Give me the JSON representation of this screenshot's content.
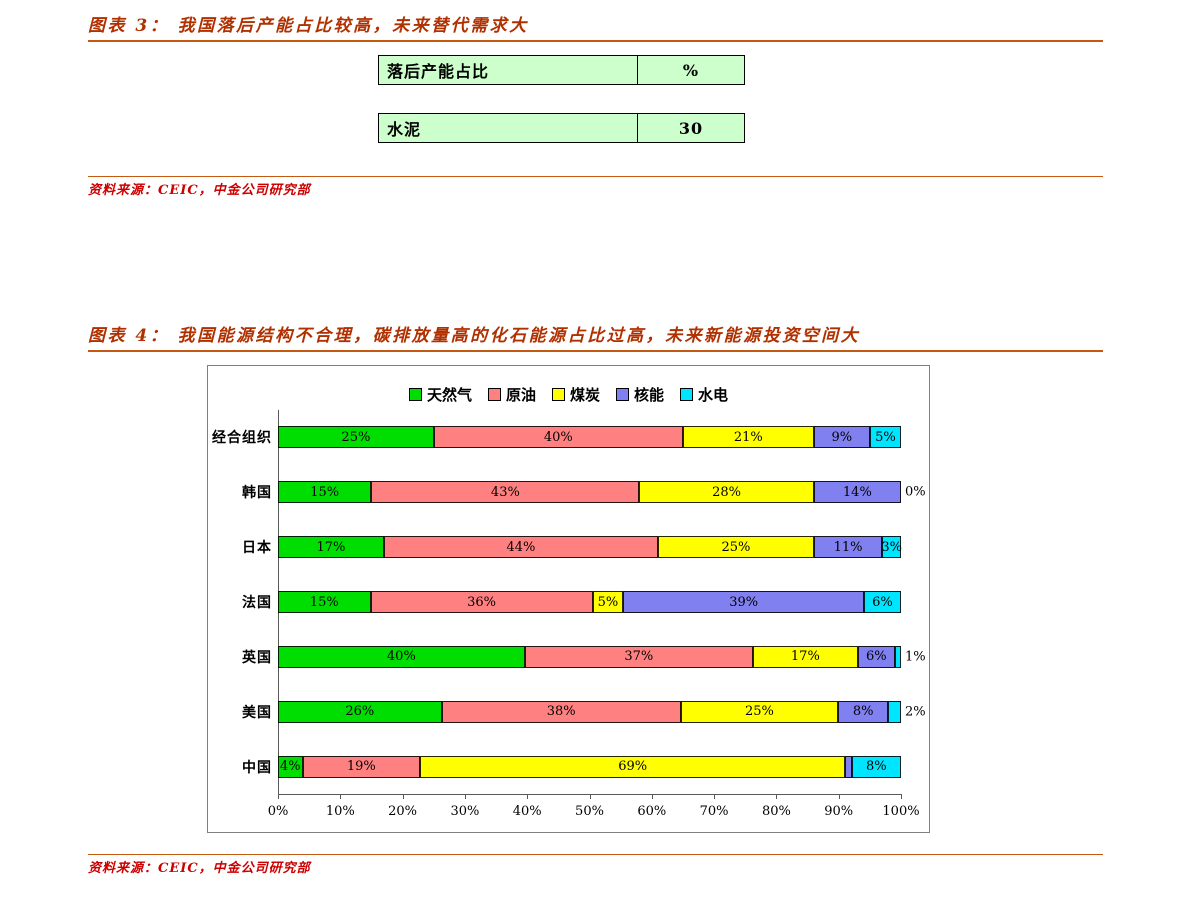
{
  "theme": {
    "title_color": "#b03000",
    "rule_color": "#c45911",
    "source_color": "#cc0000",
    "table_bg": "#ccffcc"
  },
  "figure3": {
    "title": "图表 3：  我国落后产能占比较高，未来替代需求大",
    "source": "资料来源：CEIC，中金公司研究部"
  },
  "figure4": {
    "title": "图表 4：  我国能源结构不合理，碳排放量高的化石能源占比过高，未来新能源投资空间大",
    "source": "资料来源：CEIC，中金公司研究部"
  },
  "chart_data": [
    {
      "type": "table",
      "title": "图表 3：  我国落后产能占比较高，未来替代需求大",
      "columns": [
        "落后产能占比",
        "%"
      ],
      "rows": [
        [
          "水泥",
          "30"
        ]
      ]
    },
    {
      "type": "bar",
      "stacked": true,
      "orientation": "horizontal",
      "title": "图表 4：  我国能源结构不合理，碳排放量高的化石能源占比过高，未来新能源投资空间大",
      "legend_position": "top",
      "grid": false,
      "xlim": [
        0,
        100
      ],
      "xticks": [
        "0%",
        "10%",
        "20%",
        "30%",
        "40%",
        "50%",
        "60%",
        "70%",
        "80%",
        "90%",
        "100%"
      ],
      "categories": [
        "经合组织",
        "韩国",
        "日本",
        "法国",
        "英国",
        "美国",
        "中国"
      ],
      "series": [
        {
          "name": "天然气",
          "color": "#00dd00",
          "values": [
            25,
            15,
            17,
            15,
            40,
            26,
            4
          ]
        },
        {
          "name": "原油",
          "color": "#ff8080",
          "values": [
            40,
            43,
            44,
            36,
            37,
            38,
            19
          ]
        },
        {
          "name": "煤炭",
          "color": "#ffff00",
          "values": [
            21,
            28,
            25,
            5,
            17,
            25,
            69
          ]
        },
        {
          "name": "核能",
          "color": "#8080f0",
          "values": [
            9,
            14,
            11,
            39,
            6,
            8,
            1
          ]
        },
        {
          "name": "水电",
          "color": "#00e5ff",
          "values": [
            5,
            0,
            3,
            6,
            1,
            2,
            8
          ]
        }
      ],
      "labels": [
        [
          "25%",
          "15%",
          "17%",
          "15%",
          "40%",
          "26%",
          "4%"
        ],
        [
          "40%",
          "43%",
          "44%",
          "36%",
          "37%",
          "38%",
          "19%"
        ],
        [
          "21%",
          "28%",
          "25%",
          "5%",
          "17%",
          "25%",
          "69%"
        ],
        [
          "9%",
          "14%",
          "11%",
          "39%",
          "6%",
          "8%",
          ""
        ],
        [
          "5%",
          "0%",
          "3%",
          "6%",
          "1%",
          "2%",
          "8%"
        ]
      ]
    }
  ]
}
